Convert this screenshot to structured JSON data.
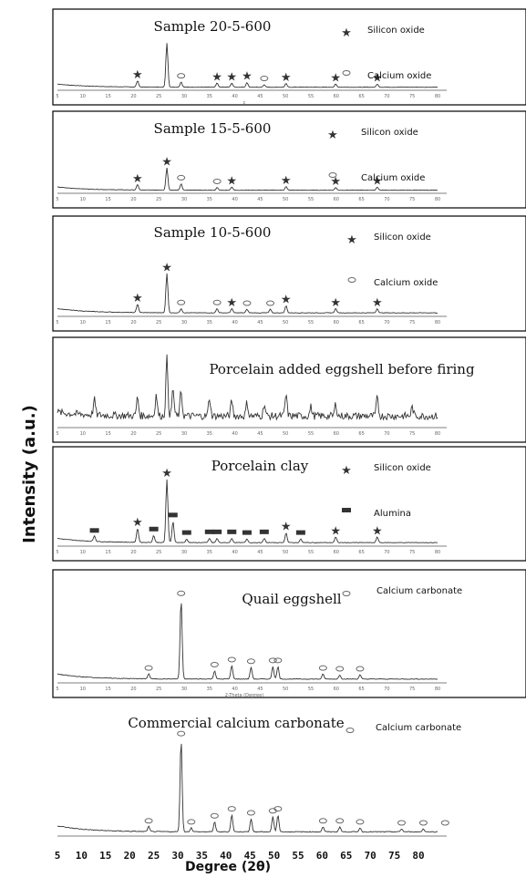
{
  "chart_data": {
    "type": "line",
    "ylabel": "Intensity (a.u.)",
    "xlabel": "Degree (2θ)",
    "xlim": [
      5,
      80
    ],
    "x_ticks": [
      "5",
      "10",
      "15",
      "20",
      "25",
      "30",
      "35",
      "40",
      "45",
      "50",
      "55",
      "60",
      "65",
      "70",
      "75",
      "80"
    ],
    "symbols": {
      "silicon_oxide": "★",
      "calcium_oxide": "◇",
      "alumina": "▬",
      "calcium_carbonate": "◇"
    },
    "panels": [
      {
        "title": "Sample 20-5-600",
        "legend": [
          {
            "symbol": "silicon_oxide",
            "label": "Silicon oxide"
          },
          {
            "symbol": "calcium_oxide",
            "label": "Calcium oxide"
          }
        ],
        "peaks": [
          {
            "x": 20.8,
            "h": 0.12,
            "m": "silicon_oxide"
          },
          {
            "x": 26.6,
            "h": 0.85,
            "m": null
          },
          {
            "x": 29.4,
            "h": 0.1,
            "m": "calcium_oxide"
          },
          {
            "x": 36.5,
            "h": 0.08,
            "m": "silicon_oxide"
          },
          {
            "x": 39.4,
            "h": 0.08,
            "m": "silicon_oxide"
          },
          {
            "x": 42.4,
            "h": 0.09,
            "m": "silicon_oxide"
          },
          {
            "x": 45.8,
            "h": 0.05,
            "m": "calcium_oxide"
          },
          {
            "x": 50.1,
            "h": 0.07,
            "m": "silicon_oxide"
          },
          {
            "x": 59.9,
            "h": 0.06,
            "m": "silicon_oxide"
          },
          {
            "x": 68.1,
            "h": 0.06,
            "m": "silicon_oxide"
          }
        ],
        "sublabel": "c"
      },
      {
        "title": "Sample 15-5-600",
        "legend": [
          {
            "symbol": "silicon_oxide",
            "label": "Silicon oxide"
          },
          {
            "symbol": "calcium_oxide",
            "label": "Calcium oxide"
          }
        ],
        "peaks": [
          {
            "x": 20.8,
            "h": 0.1,
            "m": "silicon_oxide"
          },
          {
            "x": 26.6,
            "h": 0.42,
            "m": "silicon_oxide"
          },
          {
            "x": 29.4,
            "h": 0.12,
            "m": "calcium_oxide"
          },
          {
            "x": 36.5,
            "h": 0.05,
            "m": "calcium_oxide"
          },
          {
            "x": 39.4,
            "h": 0.06,
            "m": "silicon_oxide"
          },
          {
            "x": 50.1,
            "h": 0.07,
            "m": "silicon_oxide"
          },
          {
            "x": 59.9,
            "h": 0.05,
            "m": "silicon_oxide"
          },
          {
            "x": 68.1,
            "h": 0.06,
            "m": "silicon_oxide"
          }
        ]
      },
      {
        "title": "Sample 10-5-600",
        "legend": [
          {
            "symbol": "silicon_oxide",
            "label": "Silicon oxide"
          },
          {
            "symbol": "calcium_oxide",
            "label": "Calcium oxide"
          }
        ],
        "peaks": [
          {
            "x": 20.8,
            "h": 0.12,
            "m": "silicon_oxide"
          },
          {
            "x": 26.6,
            "h": 0.55,
            "m": "silicon_oxide"
          },
          {
            "x": 29.4,
            "h": 0.06,
            "m": "calcium_oxide"
          },
          {
            "x": 36.5,
            "h": 0.06,
            "m": "calcium_oxide"
          },
          {
            "x": 39.4,
            "h": 0.06,
            "m": "silicon_oxide"
          },
          {
            "x": 42.4,
            "h": 0.05,
            "m": "calcium_oxide"
          },
          {
            "x": 47.0,
            "h": 0.05,
            "m": "calcium_oxide"
          },
          {
            "x": 50.1,
            "h": 0.1,
            "m": "silicon_oxide"
          },
          {
            "x": 59.9,
            "h": 0.06,
            "m": "silicon_oxide"
          },
          {
            "x": 68.1,
            "h": 0.06,
            "m": "silicon_oxide"
          }
        ]
      },
      {
        "title": "Porcelain added eggshell before firing",
        "legend": [],
        "noisy": true,
        "peaks": [
          {
            "x": 12.3,
            "h": 0.25,
            "m": null
          },
          {
            "x": 20.8,
            "h": 0.3,
            "m": null
          },
          {
            "x": 24.5,
            "h": 0.35,
            "m": null
          },
          {
            "x": 26.6,
            "h": 0.95,
            "m": null
          },
          {
            "x": 27.8,
            "h": 0.45,
            "m": null
          },
          {
            "x": 29.4,
            "h": 0.4,
            "m": null
          },
          {
            "x": 35.0,
            "h": 0.3,
            "m": null
          },
          {
            "x": 39.4,
            "h": 0.25,
            "m": null
          },
          {
            "x": 42.4,
            "h": 0.22,
            "m": null
          },
          {
            "x": 45.8,
            "h": 0.2,
            "m": null
          },
          {
            "x": 50.1,
            "h": 0.35,
            "m": null
          },
          {
            "x": 55.0,
            "h": 0.15,
            "m": null
          },
          {
            "x": 59.9,
            "h": 0.2,
            "m": null
          },
          {
            "x": 68.1,
            "h": 0.3,
            "m": null
          },
          {
            "x": 75.0,
            "h": 0.15,
            "m": null
          }
        ]
      },
      {
        "title": "Porcelain clay",
        "legend": [
          {
            "symbol": "silicon_oxide",
            "label": "Silicon oxide"
          },
          {
            "symbol": "alumina",
            "label": "Alumina"
          }
        ],
        "peaks": [
          {
            "x": 12.3,
            "h": 0.08,
            "m": "alumina"
          },
          {
            "x": 20.8,
            "h": 0.2,
            "m": "silicon_oxide"
          },
          {
            "x": 24.0,
            "h": 0.1,
            "m": "alumina"
          },
          {
            "x": 26.6,
            "h": 0.9,
            "m": "silicon_oxide"
          },
          {
            "x": 27.8,
            "h": 0.3,
            "m": "alumina"
          },
          {
            "x": 30.5,
            "h": 0.05,
            "m": "alumina"
          },
          {
            "x": 35.0,
            "h": 0.06,
            "m": "alumina"
          },
          {
            "x": 36.5,
            "h": 0.06,
            "m": "alumina"
          },
          {
            "x": 39.4,
            "h": 0.06,
            "m": "alumina"
          },
          {
            "x": 42.4,
            "h": 0.05,
            "m": "alumina"
          },
          {
            "x": 45.8,
            "h": 0.06,
            "m": "alumina"
          },
          {
            "x": 50.1,
            "h": 0.14,
            "m": "silicon_oxide"
          },
          {
            "x": 53.0,
            "h": 0.05,
            "m": "alumina"
          },
          {
            "x": 59.9,
            "h": 0.08,
            "m": "silicon_oxide"
          },
          {
            "x": 68.1,
            "h": 0.08,
            "m": "silicon_oxide"
          }
        ]
      },
      {
        "title": "Quail eggshell",
        "legend": [
          {
            "symbol": "calcium_carbonate",
            "label": "Calcium carbonate"
          }
        ],
        "sublabel": "2-Theta (Degree)",
        "peaks": [
          {
            "x": 23.0,
            "h": 0.06,
            "m": "calcium_carbonate"
          },
          {
            "x": 29.4,
            "h": 0.95,
            "m": "calcium_carbonate"
          },
          {
            "x": 36.0,
            "h": 0.1,
            "m": "calcium_carbonate"
          },
          {
            "x": 39.4,
            "h": 0.16,
            "m": "calcium_carbonate"
          },
          {
            "x": 43.2,
            "h": 0.14,
            "m": "calcium_carbonate"
          },
          {
            "x": 47.5,
            "h": 0.15,
            "m": "calcium_carbonate"
          },
          {
            "x": 48.5,
            "h": 0.15,
            "m": "calcium_carbonate"
          },
          {
            "x": 57.4,
            "h": 0.06,
            "m": "calcium_carbonate"
          },
          {
            "x": 60.7,
            "h": 0.05,
            "m": "calcium_carbonate"
          },
          {
            "x": 64.7,
            "h": 0.05,
            "m": "calcium_carbonate"
          }
        ]
      },
      {
        "title": "Commercial calcium carbonate",
        "legend": [
          {
            "symbol": "calcium_carbonate",
            "label": "Calcium carbonate"
          }
        ],
        "frameless": true,
        "peaks": [
          {
            "x": 23.0,
            "h": 0.05,
            "m": "calcium_carbonate"
          },
          {
            "x": 29.4,
            "h": 0.92,
            "m": "calcium_carbonate"
          },
          {
            "x": 31.4,
            "h": 0.04,
            "m": "calcium_carbonate"
          },
          {
            "x": 36.0,
            "h": 0.1,
            "m": "calcium_carbonate"
          },
          {
            "x": 39.4,
            "h": 0.17,
            "m": "calcium_carbonate"
          },
          {
            "x": 43.2,
            "h": 0.13,
            "m": "calcium_carbonate"
          },
          {
            "x": 47.5,
            "h": 0.15,
            "m": "calcium_carbonate"
          },
          {
            "x": 48.5,
            "h": 0.17,
            "m": "calcium_carbonate"
          },
          {
            "x": 57.4,
            "h": 0.05,
            "m": "calcium_carbonate"
          },
          {
            "x": 60.7,
            "h": 0.05,
            "m": "calcium_carbonate"
          },
          {
            "x": 64.7,
            "h": 0.04,
            "m": "calcium_carbonate"
          },
          {
            "x": 72.9,
            "h": 0.03,
            "m": "calcium_carbonate"
          },
          {
            "x": 77.2,
            "h": 0.03,
            "m": "calcium_carbonate"
          },
          {
            "x": 81.5,
            "h": 0.03,
            "m": "calcium_carbonate"
          }
        ]
      }
    ]
  }
}
